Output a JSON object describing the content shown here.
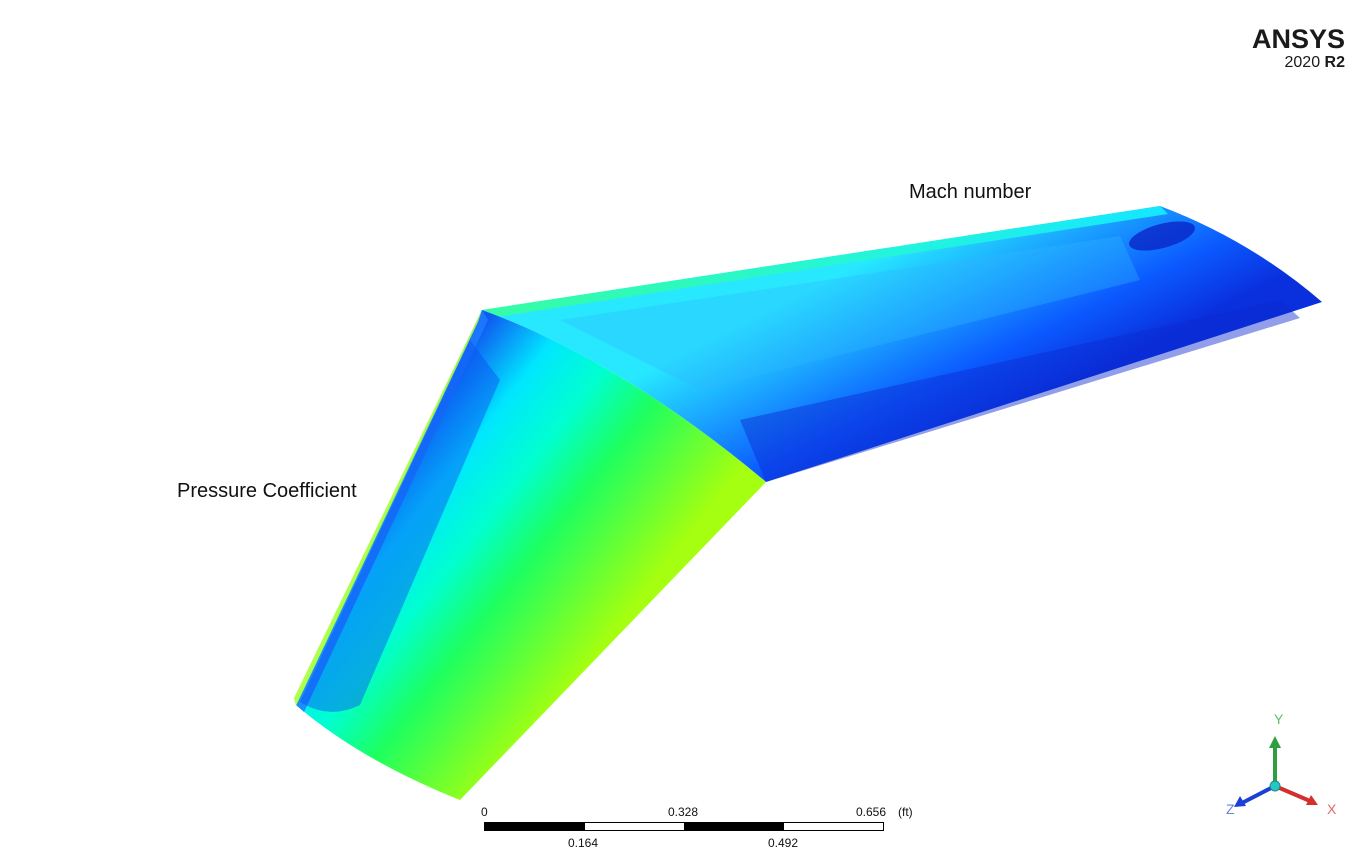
{
  "brand": {
    "name": "ANSYS",
    "version_year": "2020",
    "version_release": "R2"
  },
  "labels": {
    "pressure": "Pressure Coefficient",
    "mach": "Mach number"
  },
  "scale_bar": {
    "top_ticks": [
      "0",
      "0.328",
      "0.656"
    ],
    "bottom_ticks": [
      "0.164",
      "0.492"
    ],
    "unit": "(ft)"
  },
  "triad": {
    "x_label": "X",
    "y_label": "Y",
    "z_label": "Z",
    "colors": {
      "x": "#d32f2f",
      "y": "#2e9e3f",
      "z": "#1c3fd6",
      "center": "#29c5c5"
    }
  },
  "colors": {
    "background": "#ffffff",
    "contour_low": "#0a2fd8",
    "contour_mid": "#00ffff",
    "contour_high": "#7fff00"
  }
}
